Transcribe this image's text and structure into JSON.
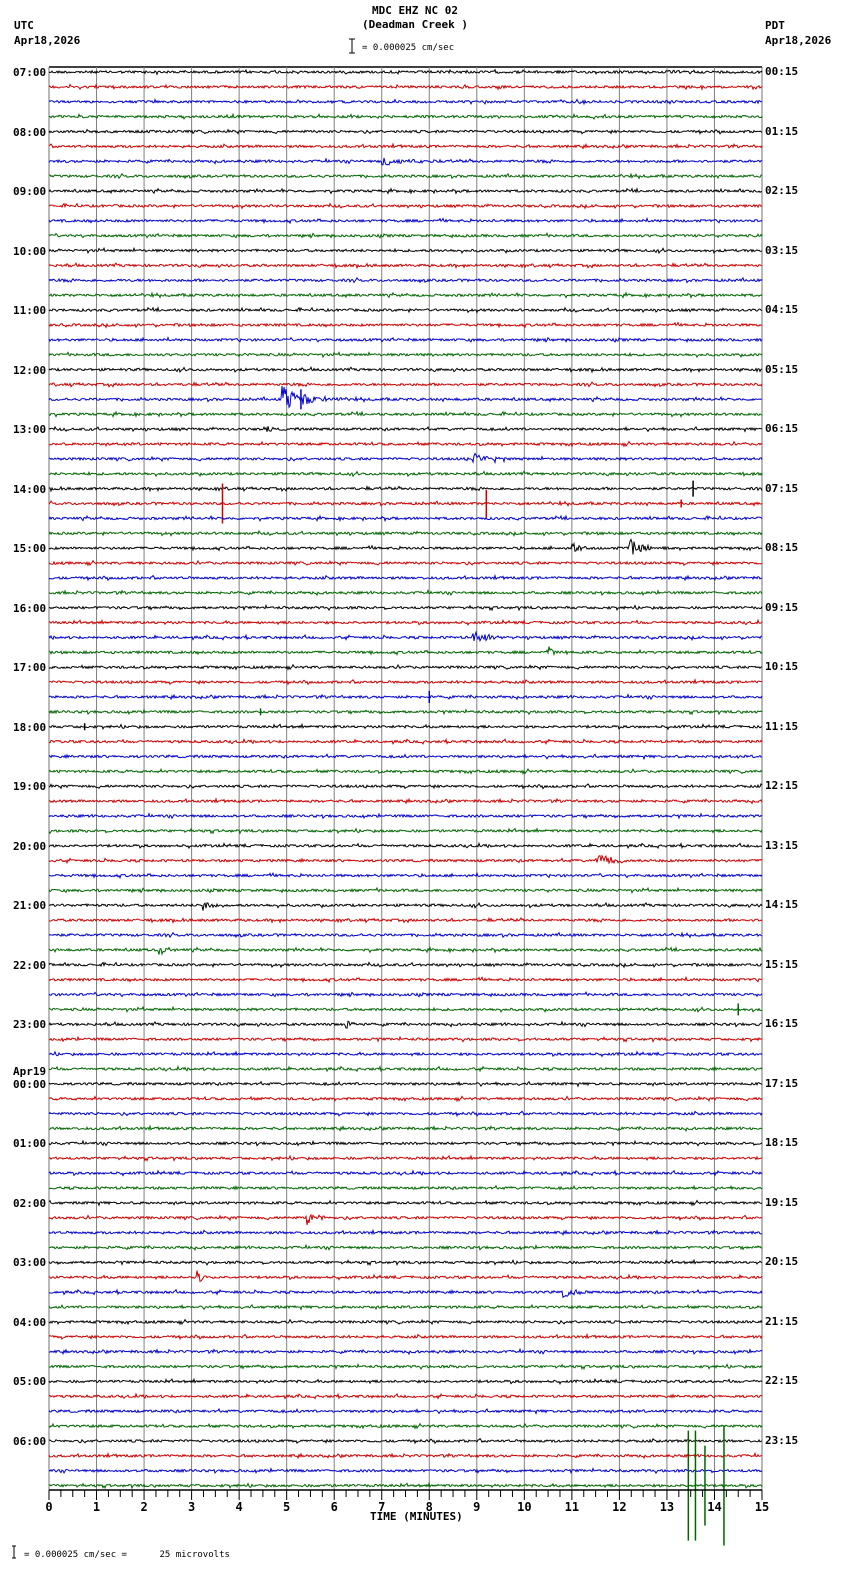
{
  "header": {
    "station": "MDC EHZ NC 02",
    "site": "(Deadman Creek )",
    "left_tz": "UTC",
    "left_date": "Apr18,2026",
    "right_tz": "PDT",
    "right_date": "Apr18,2026",
    "scale_label": "= 0.000025 cm/sec"
  },
  "footer": {
    "scale_note": "= 0.000025 cm/sec =      25 microvolts",
    "xlabel": "TIME (MINUTES)"
  },
  "colors": {
    "trace_cycle": [
      "#000000",
      "#cc0000",
      "#0000cc",
      "#006600"
    ],
    "grid": "#808080",
    "frame": "#000000"
  },
  "chart_data": {
    "type": "line",
    "title": "MDC EHZ NC 02 (Deadman Creek ) helicorder",
    "xlabel": "TIME (MINUTES)",
    "ylabel": "",
    "xlim": [
      0,
      15
    ],
    "x_ticks": [
      "0",
      "1",
      "2",
      "3",
      "4",
      "5",
      "6",
      "7",
      "8",
      "9",
      "10",
      "11",
      "12",
      "13",
      "14",
      "15"
    ],
    "grid": true,
    "traces_per_hour": 4,
    "minutes_per_trace": 15,
    "left_hour_labels": [
      "07:00",
      "08:00",
      "09:00",
      "10:00",
      "11:00",
      "12:00",
      "13:00",
      "14:00",
      "15:00",
      "16:00",
      "17:00",
      "18:00",
      "19:00",
      "20:00",
      "21:00",
      "22:00",
      "23:00",
      "Apr19\n00:00",
      "01:00",
      "02:00",
      "03:00",
      "04:00",
      "05:00",
      "06:00"
    ],
    "right_hour_labels": [
      "00:15",
      "01:15",
      "02:15",
      "03:15",
      "04:15",
      "05:15",
      "06:15",
      "07:15",
      "08:15",
      "09:15",
      "10:15",
      "11:15",
      "12:15",
      "13:15",
      "14:15",
      "15:15",
      "16:15",
      "17:15",
      "18:15",
      "19:15",
      "20:15",
      "21:15",
      "22:15",
      "23:15"
    ],
    "events": [
      {
        "trace": 6,
        "minute": 7.0,
        "dur": 1.2,
        "amp": 5,
        "type": "quake"
      },
      {
        "trace": 22,
        "minute": 4.9,
        "dur": 1.3,
        "amp": 16,
        "type": "quake"
      },
      {
        "trace": 22,
        "minute": 5.3,
        "dur": 0.2,
        "amp": 20,
        "type": "spike"
      },
      {
        "trace": 24,
        "minute": 4.5,
        "dur": 0.3,
        "amp": 6,
        "type": "quake"
      },
      {
        "trace": 26,
        "minute": 8.9,
        "dur": 1.0,
        "amp": 6,
        "type": "quake"
      },
      {
        "trace": 29,
        "minute": 3.65,
        "dur": 0.05,
        "amp": 40,
        "type": "spike"
      },
      {
        "trace": 29,
        "minute": 9.2,
        "dur": 0.05,
        "amp": 28,
        "type": "spike"
      },
      {
        "trace": 29,
        "minute": 13.3,
        "dur": 0.05,
        "amp": 8,
        "type": "spike"
      },
      {
        "trace": 28,
        "minute": 13.55,
        "dur": 0.05,
        "amp": 16,
        "type": "spike"
      },
      {
        "trace": 32,
        "minute": 11.0,
        "dur": 0.5,
        "amp": 7,
        "type": "quake"
      },
      {
        "trace": 32,
        "minute": 12.2,
        "dur": 0.9,
        "amp": 9,
        "type": "quake"
      },
      {
        "trace": 38,
        "minute": 8.9,
        "dur": 1.0,
        "amp": 7,
        "type": "quake"
      },
      {
        "trace": 39,
        "minute": 10.5,
        "dur": 0.5,
        "amp": 6,
        "type": "quake"
      },
      {
        "trace": 42,
        "minute": 8.0,
        "dur": 0.05,
        "amp": 12,
        "type": "spike"
      },
      {
        "trace": 43,
        "minute": 4.45,
        "dur": 0.05,
        "amp": 7,
        "type": "spike"
      },
      {
        "trace": 44,
        "minute": 0.75,
        "dur": 0.05,
        "amp": 7,
        "type": "spike"
      },
      {
        "trace": 53,
        "minute": 11.5,
        "dur": 0.9,
        "amp": 9,
        "type": "quake"
      },
      {
        "trace": 56,
        "minute": 3.2,
        "dur": 0.6,
        "amp": 7,
        "type": "quake"
      },
      {
        "trace": 59,
        "minute": 2.3,
        "dur": 0.5,
        "amp": 7,
        "type": "quake"
      },
      {
        "trace": 63,
        "minute": 14.5,
        "dur": 0.05,
        "amp": 12,
        "type": "spike"
      },
      {
        "trace": 64,
        "minute": 6.2,
        "dur": 0.4,
        "amp": 8,
        "type": "quake"
      },
      {
        "trace": 77,
        "minute": 5.4,
        "dur": 0.5,
        "amp": 11,
        "type": "quake"
      },
      {
        "trace": 81,
        "minute": 3.1,
        "dur": 0.3,
        "amp": 10,
        "type": "quake"
      },
      {
        "trace": 82,
        "minute": 10.8,
        "dur": 0.6,
        "amp": 6,
        "type": "quake"
      },
      {
        "trace": 95,
        "minute": 13.45,
        "dur": 0.05,
        "amp": 110,
        "type": "spike"
      },
      {
        "trace": 95,
        "minute": 13.6,
        "dur": 0.05,
        "amp": 110,
        "type": "spike"
      },
      {
        "trace": 95,
        "minute": 13.8,
        "dur": 0.05,
        "amp": 80,
        "type": "spike"
      },
      {
        "trace": 95,
        "minute": 14.2,
        "dur": 0.05,
        "amp": 120,
        "type": "spike"
      }
    ]
  }
}
